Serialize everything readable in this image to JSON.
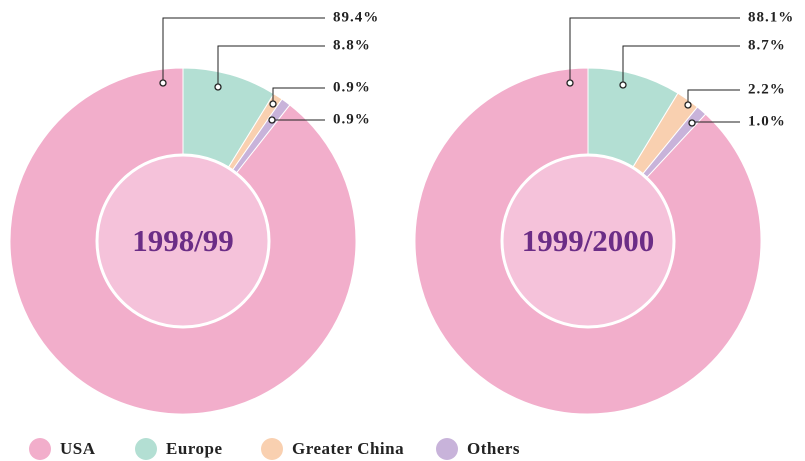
{
  "chart_data": [
    {
      "type": "pie",
      "title": "1998/99",
      "categories": [
        "USA",
        "Europe",
        "Greater China",
        "Others"
      ],
      "values": [
        89.4,
        8.8,
        0.9,
        0.9
      ],
      "value_labels": [
        "89.4%",
        "8.8%",
        "0.9%",
        "0.9%"
      ],
      "colors": [
        "#f2aecb",
        "#b3dfd3",
        "#f9d0b0",
        "#c8b3da"
      ]
    },
    {
      "type": "pie",
      "title": "1999/2000",
      "categories": [
        "USA",
        "Europe",
        "Greater China",
        "Others"
      ],
      "values": [
        88.1,
        8.7,
        2.2,
        1.0
      ],
      "value_labels": [
        "88.1%",
        "8.7%",
        "2.2%",
        "1.0%"
      ],
      "colors": [
        "#f2aecb",
        "#b3dfd3",
        "#f9d0b0",
        "#c8b3da"
      ]
    }
  ]
}
